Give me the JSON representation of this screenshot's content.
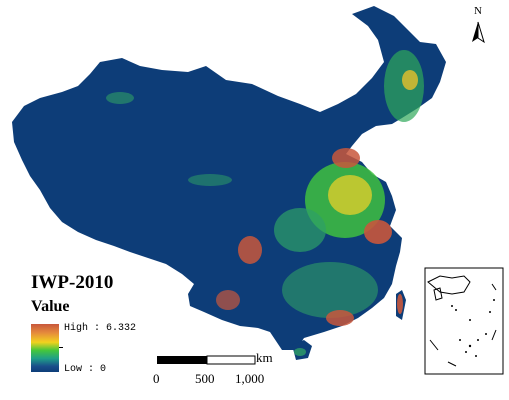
{
  "map": {
    "title": "IWP-2010",
    "legend": {
      "title": "Value",
      "high_label": "High : 6.332",
      "low_label": "Low : 0",
      "high_value": 6.332,
      "low_value": 0,
      "colors": [
        "#c8573c",
        "#e58a3c",
        "#f2d21e",
        "#44c63c",
        "#1f9f88",
        "#1a4e8a",
        "#0d3d78"
      ]
    },
    "scale_bar": {
      "unit": "km",
      "ticks": [
        "0",
        "500",
        "1,000"
      ]
    },
    "north_arrow": {
      "label": "N",
      "icon": "north-arrow-icon"
    },
    "inset": {
      "description_icon": "south-china-sea-inset"
    }
  }
}
